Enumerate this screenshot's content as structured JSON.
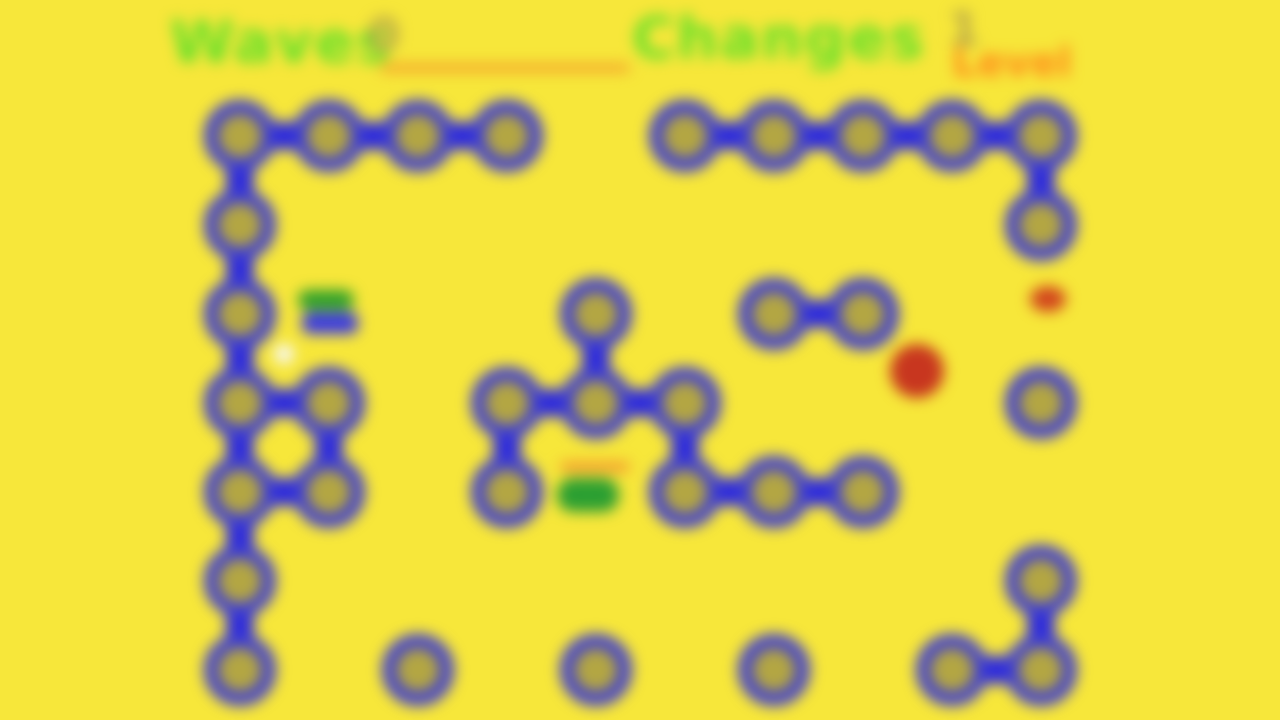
{
  "hud": {
    "left_title": "Waves",
    "left_number": "0",
    "right_title": "Changes",
    "right_number": "1",
    "right_sub": "Level"
  },
  "colors": {
    "background": "#f7e73a",
    "maze_ring": "#3f3ed0",
    "maze_center": "#b3a643",
    "title_text": "#66e02a",
    "accent_orange": "#f6a12b",
    "enemy_red": "#c8361f"
  },
  "board": {
    "grid_columns": 10,
    "grid_rows": 7,
    "nodes": [
      [
        1,
        1
      ],
      [
        2,
        1
      ],
      [
        3,
        1
      ],
      [
        4,
        1
      ],
      [
        6,
        1
      ],
      [
        7,
        1
      ],
      [
        8,
        1
      ],
      [
        9,
        1
      ],
      [
        10,
        1
      ],
      [
        1,
        2
      ],
      [
        10,
        2
      ],
      [
        1,
        3
      ],
      [
        5,
        3
      ],
      [
        7,
        3
      ],
      [
        8,
        3
      ],
      [
        1,
        4
      ],
      [
        2,
        4
      ],
      [
        4,
        4
      ],
      [
        5,
        4
      ],
      [
        6,
        4
      ],
      [
        10,
        4
      ],
      [
        1,
        5
      ],
      [
        2,
        5
      ],
      [
        4,
        5
      ],
      [
        6,
        5
      ],
      [
        7,
        5
      ],
      [
        8,
        5
      ],
      [
        1,
        6
      ],
      [
        10,
        6
      ],
      [
        1,
        7
      ],
      [
        3,
        7
      ],
      [
        5,
        7
      ],
      [
        7,
        7
      ],
      [
        9,
        7
      ],
      [
        10,
        7
      ]
    ],
    "links": [
      [
        [
          1,
          1
        ],
        [
          2,
          1
        ]
      ],
      [
        [
          2,
          1
        ],
        [
          3,
          1
        ]
      ],
      [
        [
          3,
          1
        ],
        [
          4,
          1
        ]
      ],
      [
        [
          6,
          1
        ],
        [
          7,
          1
        ]
      ],
      [
        [
          7,
          1
        ],
        [
          8,
          1
        ]
      ],
      [
        [
          8,
          1
        ],
        [
          9,
          1
        ]
      ],
      [
        [
          9,
          1
        ],
        [
          10,
          1
        ]
      ],
      [
        [
          1,
          1
        ],
        [
          1,
          2
        ]
      ],
      [
        [
          1,
          2
        ],
        [
          1,
          3
        ]
      ],
      [
        [
          1,
          3
        ],
        [
          1,
          4
        ]
      ],
      [
        [
          1,
          4
        ],
        [
          1,
          5
        ]
      ],
      [
        [
          1,
          5
        ],
        [
          1,
          6
        ]
      ],
      [
        [
          1,
          6
        ],
        [
          1,
          7
        ]
      ],
      [
        [
          10,
          1
        ],
        [
          10,
          2
        ]
      ],
      [
        [
          7,
          3
        ],
        [
          8,
          3
        ]
      ],
      [
        [
          5,
          3
        ],
        [
          5,
          4
        ]
      ],
      [
        [
          4,
          4
        ],
        [
          5,
          4
        ]
      ],
      [
        [
          5,
          4
        ],
        [
          6,
          4
        ]
      ],
      [
        [
          1,
          4
        ],
        [
          2,
          4
        ]
      ],
      [
        [
          1,
          5
        ],
        [
          2,
          5
        ]
      ],
      [
        [
          2,
          4
        ],
        [
          2,
          5
        ]
      ],
      [
        [
          4,
          4
        ],
        [
          4,
          5
        ]
      ],
      [
        [
          6,
          4
        ],
        [
          6,
          5
        ]
      ],
      [
        [
          6,
          5
        ],
        [
          7,
          5
        ]
      ],
      [
        [
          7,
          5
        ],
        [
          8,
          5
        ]
      ],
      [
        [
          9,
          7
        ],
        [
          10,
          7
        ]
      ],
      [
        [
          10,
          6
        ],
        [
          10,
          7
        ]
      ]
    ]
  }
}
